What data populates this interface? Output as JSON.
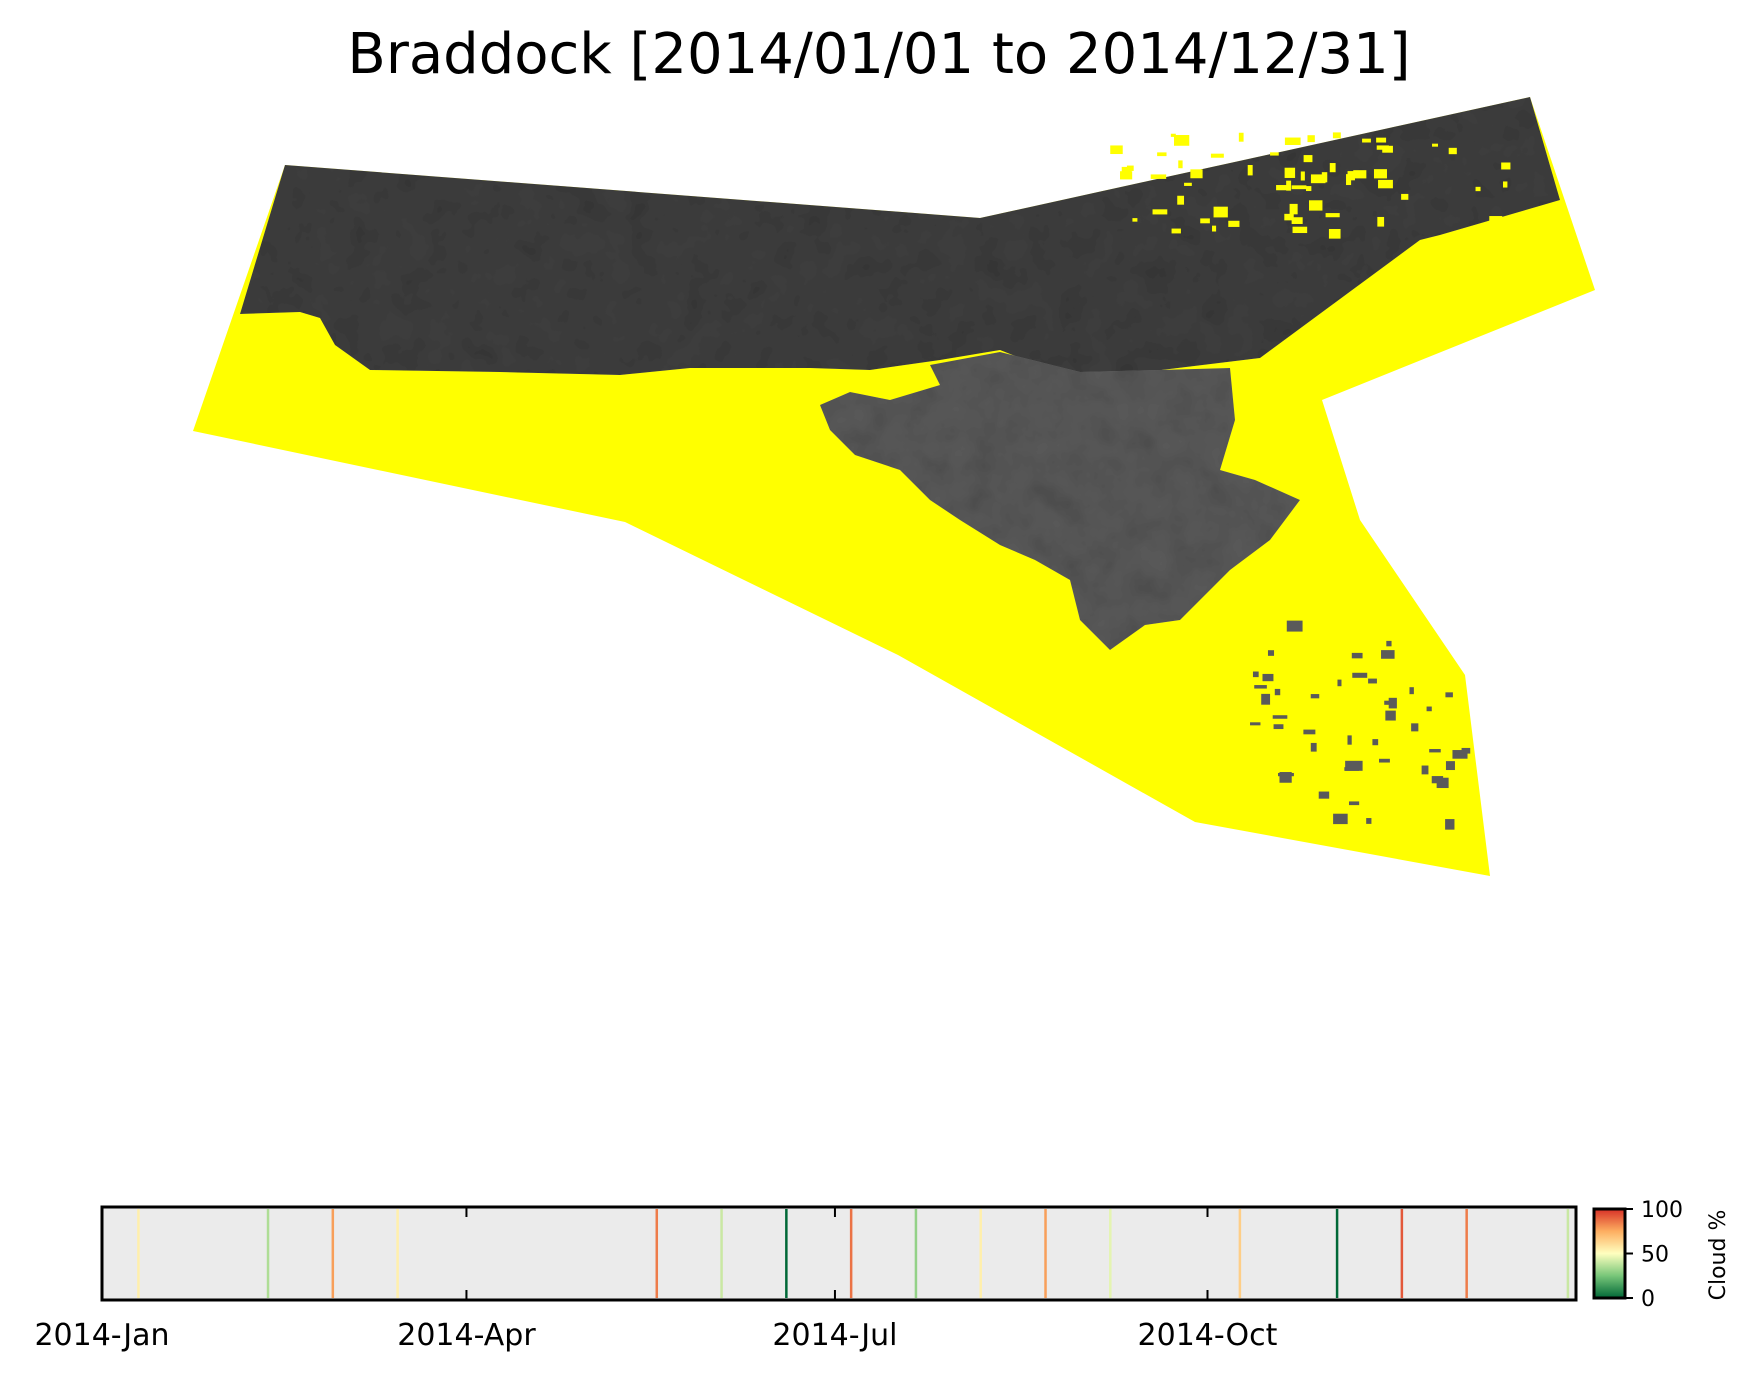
{
  "title": "Braddock [2014/01/01 to 2014/12/31]",
  "colors": {
    "land_dark": "#3f3f3f",
    "land_mid": "#5a5a5a",
    "nodata_yellow": "#ffff00",
    "timeline_bg": "#ebebeb",
    "colormap": [
      "#006837",
      "#78c679",
      "#ffffbf",
      "#fdae61",
      "#d73027"
    ]
  },
  "chart_data": {
    "type": "timeline",
    "x_range": [
      "2014-01-01",
      "2014-12-31"
    ],
    "tick_labels": [
      "2014-Jan",
      "2014-Apr",
      "2014-Jul",
      "2014-Oct"
    ],
    "tick_dates": [
      "2014-01-01",
      "2014-04-01",
      "2014-07-01",
      "2014-10-01"
    ],
    "colorbar": {
      "label": "Cloud %",
      "min": 0,
      "max": 100,
      "ticks": [
        "0",
        "50",
        "100"
      ]
    },
    "observations": [
      {
        "date": "2014-01-10",
        "cloud": 55
      },
      {
        "date": "2014-02-11",
        "cloud": 35
      },
      {
        "date": "2014-02-27",
        "cloud": 78
      },
      {
        "date": "2014-03-15",
        "cloud": 55
      },
      {
        "date": "2014-05-18",
        "cloud": 85
      },
      {
        "date": "2014-06-03",
        "cloud": 40
      },
      {
        "date": "2014-06-19",
        "cloud": 0
      },
      {
        "date": "2014-07-05",
        "cloud": 87
      },
      {
        "date": "2014-07-21",
        "cloud": 30
      },
      {
        "date": "2014-08-06",
        "cloud": 55
      },
      {
        "date": "2014-08-22",
        "cloud": 78
      },
      {
        "date": "2014-09-07",
        "cloud": 45
      },
      {
        "date": "2014-10-09",
        "cloud": 65
      },
      {
        "date": "2014-11-02",
        "cloud": 0
      },
      {
        "date": "2014-11-18",
        "cloud": 92
      },
      {
        "date": "2014-12-04",
        "cloud": 85
      },
      {
        "date": "2014-12-29",
        "cloud": 40
      }
    ]
  }
}
